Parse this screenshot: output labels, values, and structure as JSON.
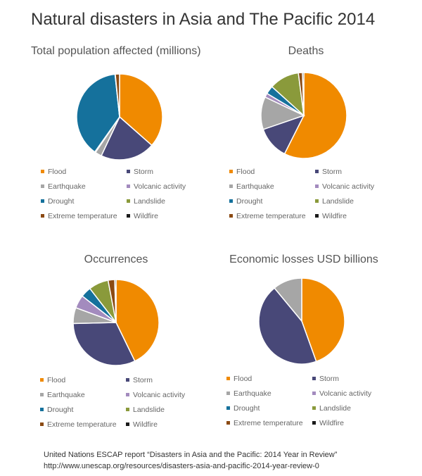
{
  "title": "Natural disasters in Asia and The Pacific 2014",
  "categories": [
    "Flood",
    "Storm",
    "Earthquake",
    "Volcanic activity",
    "Drought",
    "Landslide",
    "Extreme temperature",
    "Wildfire"
  ],
  "colors": [
    "#F08A00",
    "#484878",
    "#A6A6A6",
    "#A38BBE",
    "#15719C",
    "#8A9A3B",
    "#8B4A13",
    "#1A1A1A"
  ],
  "chart_data": [
    {
      "type": "pie",
      "title": "Total population affected (millions)",
      "categories": [
        "Flood",
        "Storm",
        "Earthquake",
        "Volcanic activity",
        "Drought",
        "Landslide",
        "Extreme temperature",
        "Wildfire"
      ],
      "values": [
        36.5,
        20.5,
        2.5,
        0.3,
        38.5,
        0.1,
        1.6,
        0.0
      ]
    },
    {
      "type": "pie",
      "title": "Deaths",
      "categories": [
        "Flood",
        "Storm",
        "Earthquake",
        "Volcanic activity",
        "Drought",
        "Landslide",
        "Extreme temperature",
        "Wildfire"
      ],
      "values": [
        56,
        12,
        12,
        1.5,
        3,
        11,
        1.5,
        0.5
      ]
    },
    {
      "type": "pie",
      "title": "Occurrences",
      "categories": [
        "Flood",
        "Storm",
        "Earthquake",
        "Volcanic activity",
        "Drought",
        "Landslide",
        "Extreme temperature",
        "Wildfire"
      ],
      "values": [
        43,
        32,
        6,
        5,
        4,
        7.5,
        2.5,
        0.5
      ]
    },
    {
      "type": "pie",
      "title": "Economic losses USD billions",
      "categories": [
        "Flood",
        "Storm",
        "Earthquake",
        "Volcanic activity",
        "Drought",
        "Landslide",
        "Extreme temperature",
        "Wildfire"
      ],
      "values": [
        44.5,
        44.5,
        11,
        0,
        0,
        0,
        0,
        0
      ]
    }
  ],
  "source": {
    "line1": "United Nations ESCAP report “Disasters in Asia and the Pacific: 2014 Year in Review”",
    "line2": "http://www.unescap.org/resources/disasters-asia-and-pacific-2014-year-review-0"
  }
}
